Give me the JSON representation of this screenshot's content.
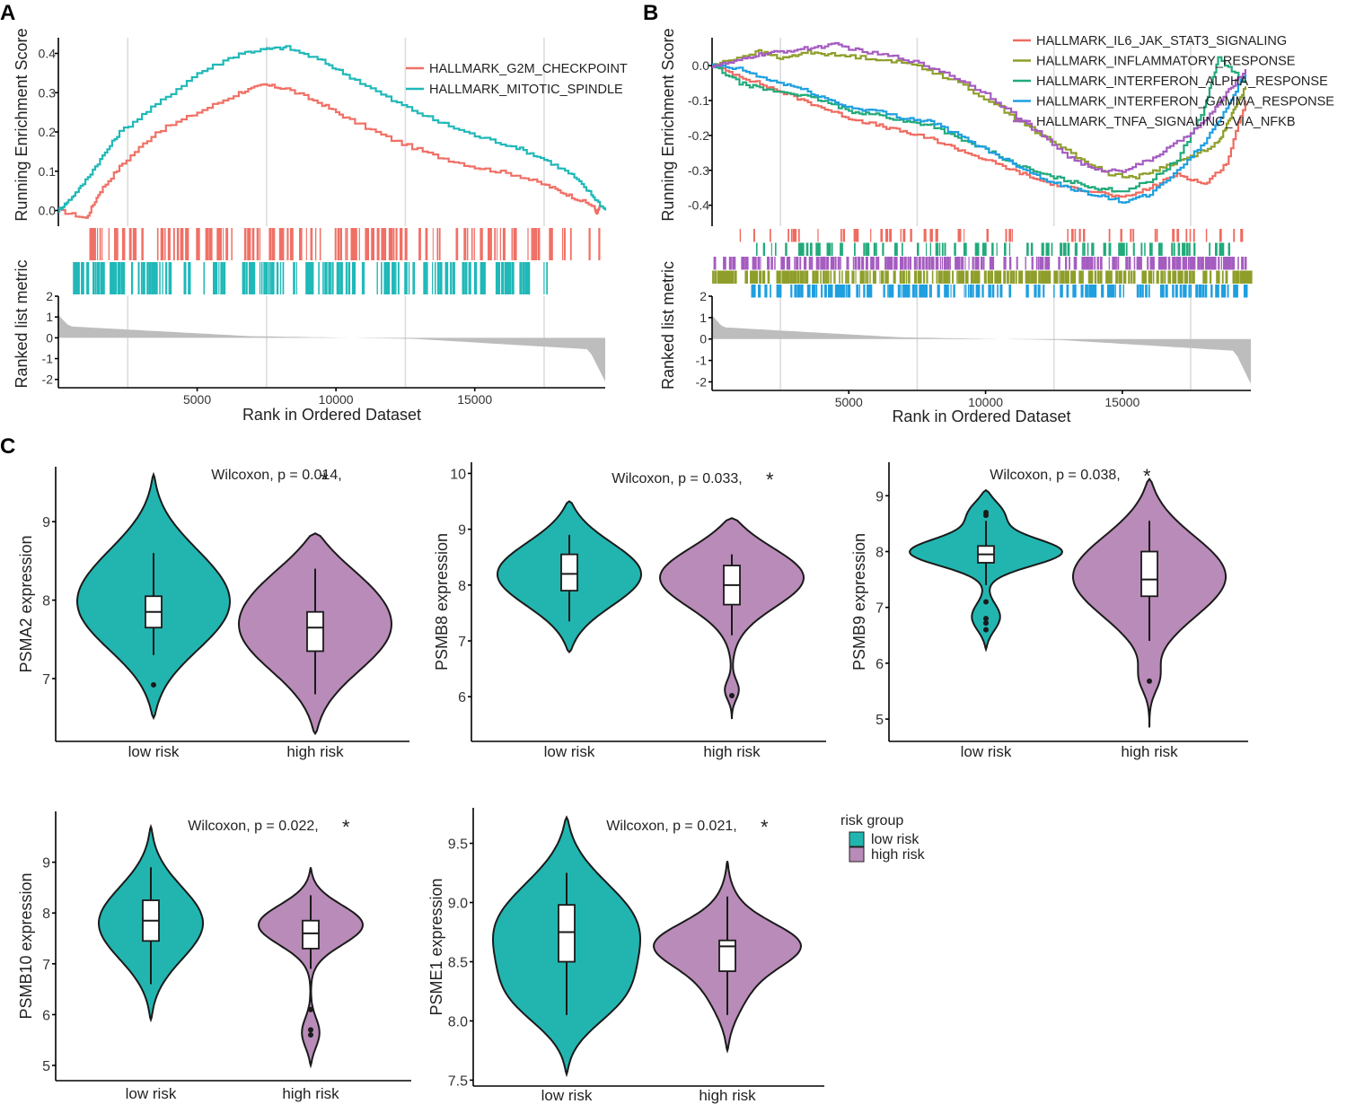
{
  "colors": {
    "low_risk": "#22b5b0",
    "high_risk": "#b98bb8",
    "gsea_a": [
      "#f07066",
      "#20b8b8"
    ],
    "gsea_b": [
      "#ef6b60",
      "#8f9e2a",
      "#22aa7a",
      "#1e9fe0",
      "#a55cc0"
    ],
    "metric_fill": "#bdbdbd"
  },
  "panel_labels": {
    "a": "A",
    "b": "B",
    "c": "C"
  },
  "chart_data": [
    {
      "type": "line",
      "id": "gsea_a",
      "panel": "A",
      "ylabel_top": "Running Enrichment Score",
      "ylabel_bottom": "Ranked list metric",
      "xlabel": "Rank in Ordered Dataset",
      "xlim": [
        0,
        19700
      ],
      "xticks": [
        5000,
        10000,
        15000
      ],
      "es_ylim": [
        -0.04,
        0.44
      ],
      "es_yticks": [
        0.0,
        0.1,
        0.2,
        0.3,
        0.4
      ],
      "es_yticklabels": [
        "0.0",
        "0.1",
        "0.2",
        "0.3",
        "0.4"
      ],
      "metric_ylim": [
        -2.4,
        2.0
      ],
      "metric_yticks": [
        -2,
        -1,
        0,
        1,
        2
      ],
      "grid_x": [
        2500,
        7500,
        12500,
        17500
      ],
      "series": [
        {
          "name": "HALLMARK_G2M_CHECKPOINT",
          "x": [
            0,
            1000,
            1500,
            2300,
            3500,
            5000,
            6500,
            7400,
            8200,
            9500,
            10500,
            12000,
            13500,
            15000,
            16500,
            17700,
            18500,
            19300,
            19400,
            19500
          ],
          "y": [
            0.0,
            -0.02,
            0.05,
            0.12,
            0.2,
            0.25,
            0.3,
            0.32,
            0.31,
            0.27,
            0.23,
            0.18,
            0.14,
            0.11,
            0.09,
            0.06,
            0.035,
            0.01,
            -0.01,
            0.01
          ],
          "hits": {
            "start": 900,
            "end": 18500,
            "n": 150,
            "extra": [
              19100,
              19450
            ]
          }
        },
        {
          "name": "HALLMARK_MITOTIC_SPINDLE",
          "x": [
            0,
            300,
            800,
            1500,
            2200,
            3500,
            5000,
            6500,
            7400,
            8200,
            9500,
            10500,
            12000,
            13500,
            15000,
            16500,
            17500,
            18500,
            19200,
            19700
          ],
          "y": [
            0.0,
            0.02,
            0.06,
            0.13,
            0.2,
            0.27,
            0.35,
            0.4,
            0.41,
            0.415,
            0.38,
            0.34,
            0.28,
            0.23,
            0.19,
            0.16,
            0.13,
            0.09,
            0.04,
            0.0
          ],
          "hits": {
            "start": 500,
            "end": 17700,
            "n": 190,
            "extra": []
          }
        }
      ]
    },
    {
      "type": "line",
      "id": "gsea_b",
      "panel": "B",
      "ylabel_top": "Running Enrichment Score",
      "ylabel_bottom": "Ranked list metric",
      "xlabel": "Rank in Ordered Dataset",
      "xlim": [
        0,
        19700
      ],
      "xticks": [
        5000,
        10000,
        15000
      ],
      "es_ylim": [
        -0.46,
        0.08
      ],
      "es_yticks": [
        0.0,
        -0.1,
        -0.2,
        -0.3,
        -0.4
      ],
      "es_yticklabels": [
        "0.0",
        "-0.1",
        "-0.2",
        "-0.3",
        "-0.4"
      ],
      "metric_ylim": [
        -2.4,
        2.0
      ],
      "metric_yticks": [
        -2,
        -1,
        0,
        1,
        2
      ],
      "grid_x": [
        2500,
        7500,
        12500,
        17500
      ],
      "series": [
        {
          "name": "HALLMARK_IL6_JAK_STAT3_SIGNALING",
          "x": [
            0,
            1000,
            2000,
            3000,
            4000,
            5000,
            6000,
            7000,
            8000,
            9000,
            10000,
            11000,
            12000,
            13000,
            14000,
            15000,
            16000,
            17000,
            18000,
            18800,
            19500
          ],
          "y": [
            0.0,
            -0.03,
            -0.06,
            -0.09,
            -0.12,
            -0.15,
            -0.17,
            -0.19,
            -0.21,
            -0.24,
            -0.27,
            -0.3,
            -0.33,
            -0.35,
            -0.36,
            -0.38,
            -0.35,
            -0.31,
            -0.34,
            -0.28,
            -0.1
          ],
          "hits": {
            "rows": [
              0
            ],
            "start": 400,
            "end": 19500,
            "n": 60
          }
        },
        {
          "name": "HALLMARK_INFLAMMATORY_RESPONSE",
          "x": [
            0,
            800,
            1700,
            2600,
            3500,
            4500,
            6000,
            7500,
            9000,
            10500,
            12000,
            13500,
            14500,
            15500,
            16500,
            17500,
            18500,
            19000,
            19500
          ],
          "y": [
            0.0,
            0.02,
            0.04,
            0.02,
            0.04,
            0.03,
            0.02,
            0.0,
            -0.05,
            -0.12,
            -0.2,
            -0.27,
            -0.31,
            -0.32,
            -0.29,
            -0.26,
            -0.22,
            -0.14,
            -0.06
          ],
          "hits": {
            "rows": [
              3
            ],
            "start": 0,
            "end": 19700,
            "n": 320
          }
        },
        {
          "name": "HALLMARK_INTERFERON_ALPHA_RESPONSE",
          "x": [
            0,
            1000,
            2000,
            3000,
            4000,
            5000,
            6000,
            7000,
            8000,
            9000,
            10000,
            11000,
            12000,
            13000,
            14000,
            15000,
            16000,
            17000,
            18000,
            18500,
            19500
          ],
          "y": [
            0.0,
            -0.05,
            -0.07,
            -0.08,
            -0.1,
            -0.13,
            -0.14,
            -0.16,
            -0.17,
            -0.21,
            -0.24,
            -0.28,
            -0.31,
            -0.33,
            -0.35,
            -0.36,
            -0.33,
            -0.27,
            -0.12,
            0.02,
            -0.05
          ],
          "hits": {
            "rows": [
              1
            ],
            "start": 1500,
            "end": 19000,
            "n": 110
          }
        },
        {
          "name": "HALLMARK_INTERFERON_GAMMA_RESPONSE",
          "x": [
            0,
            1000,
            2000,
            3000,
            4000,
            5000,
            6000,
            7000,
            8000,
            9000,
            10000,
            11000,
            12000,
            13000,
            14000,
            15000,
            16000,
            17000,
            18000,
            18800,
            19500
          ],
          "y": [
            0.0,
            -0.01,
            -0.04,
            -0.06,
            -0.09,
            -0.12,
            -0.13,
            -0.15,
            -0.16,
            -0.2,
            -0.24,
            -0.28,
            -0.32,
            -0.35,
            -0.37,
            -0.39,
            -0.37,
            -0.3,
            -0.22,
            -0.12,
            -0.02
          ],
          "hits": {
            "rows": [
              4
            ],
            "start": 1400,
            "end": 19500,
            "n": 180
          }
        },
        {
          "name": "HALLMARK_TNFA_SIGNALING_VIA_NFKB",
          "x": [
            0,
            800,
            1600,
            2500,
            3500,
            4500,
            5500,
            7000,
            8500,
            10000,
            11500,
            13000,
            14000,
            15000,
            16000,
            17000,
            18000,
            18800,
            19500
          ],
          "y": [
            0.0,
            0.01,
            0.03,
            0.04,
            0.05,
            0.06,
            0.04,
            0.02,
            -0.02,
            -0.08,
            -0.17,
            -0.26,
            -0.3,
            -0.3,
            -0.27,
            -0.22,
            -0.16,
            -0.08,
            -0.01
          ],
          "hits": {
            "rows": [
              2
            ],
            "start": 0,
            "end": 19500,
            "n": 260
          }
        }
      ]
    },
    {
      "type": "violin",
      "id": "psma2",
      "ylabel": "PSMA2 expression",
      "annotation": "Wilcoxon, p = 0.014,",
      "sig": "*",
      "ylim": [
        6.2,
        9.7
      ],
      "yticks": [
        7,
        8,
        9
      ],
      "yticklabels": [
        "7",
        "8",
        "9"
      ],
      "categories": [
        "low risk",
        "high risk"
      ],
      "groups": [
        {
          "name": "low risk",
          "min": 6.5,
          "max": 9.6,
          "peaks": [
            [
              7.8,
              1.0,
              0.55
            ],
            [
              8.5,
              0.45,
              0.5
            ]
          ],
          "whisker": [
            7.3,
            8.6
          ],
          "q1": 7.65,
          "median": 7.85,
          "q3": 8.05,
          "outliers": [
            6.92
          ]
        },
        {
          "name": "high risk",
          "min": 6.3,
          "max": 8.85,
          "peaks": [
            [
              7.6,
              0.95,
              0.55
            ],
            [
              8.3,
              0.3,
              0.4
            ]
          ],
          "whisker": [
            6.8,
            8.4
          ],
          "q1": 7.35,
          "median": 7.65,
          "q3": 7.85,
          "outliers": []
        }
      ]
    },
    {
      "type": "violin",
      "id": "psmb8",
      "ylabel": "PSMB8 expression",
      "annotation": "Wilcoxon, p = 0.033,",
      "sig": "*",
      "ylim": [
        5.2,
        10.2
      ],
      "yticks": [
        6,
        7,
        8,
        9,
        10
      ],
      "yticklabels": [
        "6",
        "7",
        "8",
        "9",
        "10"
      ],
      "categories": [
        "low risk",
        "high risk"
      ],
      "groups": [
        {
          "name": "low risk",
          "min": 6.8,
          "max": 9.5,
          "peaks": [
            [
              8.2,
              1.0,
              0.6
            ]
          ],
          "whisker": [
            7.35,
            8.9
          ],
          "q1": 7.9,
          "median": 8.2,
          "q3": 8.55,
          "outliers": []
        },
        {
          "name": "high risk",
          "min": 5.6,
          "max": 9.2,
          "peaks": [
            [
              8.2,
              1.0,
              0.55
            ],
            [
              6.1,
              0.12,
              0.18
            ]
          ],
          "whisker": [
            7.1,
            8.55
          ],
          "q1": 7.65,
          "median": 8.0,
          "q3": 8.35,
          "outliers": [
            6.02
          ]
        }
      ]
    },
    {
      "type": "violin",
      "id": "psmb9",
      "ylabel": "PSMB9 expression",
      "annotation": "Wilcoxon, p = 0.038,",
      "sig": "*",
      "ylim": [
        4.6,
        9.6
      ],
      "yticks": [
        5,
        6,
        7,
        8,
        9
      ],
      "yticklabels": [
        "5",
        "6",
        "7",
        "8",
        "9"
      ],
      "categories": [
        "low risk",
        "high risk"
      ],
      "groups": [
        {
          "name": "low risk",
          "min": 6.25,
          "max": 9.1,
          "peaks": [
            [
              8.0,
              1.0,
              0.25
            ],
            [
              6.8,
              0.22,
              0.25
            ],
            [
              8.7,
              0.3,
              0.25
            ]
          ],
          "whisker": [
            7.4,
            8.55
          ],
          "q1": 7.8,
          "median": 7.95,
          "q3": 8.1,
          "outliers": [
            6.6,
            6.72,
            6.8,
            7.1,
            8.65,
            8.7
          ]
        },
        {
          "name": "high risk",
          "min": 4.85,
          "max": 9.3,
          "peaks": [
            [
              7.6,
              0.8,
              0.75
            ],
            [
              5.7,
              0.1,
              0.25
            ]
          ],
          "whisker": [
            6.4,
            8.55
          ],
          "q1": 7.2,
          "median": 7.5,
          "q3": 8.0,
          "outliers": [
            5.68
          ]
        }
      ]
    },
    {
      "type": "violin",
      "id": "psmb10",
      "ylabel": "PSMB10 expression",
      "annotation": "Wilcoxon, p = 0.022,",
      "sig": "*",
      "ylim": [
        4.7,
        10.0
      ],
      "yticks": [
        5,
        6,
        7,
        8,
        9
      ],
      "yticklabels": [
        "5",
        "6",
        "7",
        "8",
        "9"
      ],
      "categories": [
        "low risk",
        "high risk"
      ],
      "groups": [
        {
          "name": "low risk",
          "min": 5.9,
          "max": 9.7,
          "peaks": [
            [
              7.8,
              1.0,
              0.75
            ]
          ],
          "whisker": [
            6.6,
            8.9
          ],
          "q1": 7.45,
          "median": 7.85,
          "q3": 8.25,
          "outliers": []
        },
        {
          "name": "high risk",
          "min": 5.0,
          "max": 8.9,
          "peaks": [
            [
              7.8,
              1.0,
              0.4
            ],
            [
              5.6,
              0.2,
              0.3
            ]
          ],
          "whisker": [
            6.9,
            8.35
          ],
          "q1": 7.3,
          "median": 7.6,
          "q3": 7.85,
          "outliers": [
            5.6,
            5.7,
            6.1
          ]
        }
      ]
    },
    {
      "type": "violin",
      "id": "psme1",
      "ylabel": "PSME1 expression",
      "annotation": "Wilcoxon, p = 0.021,",
      "sig": "*",
      "ylim": [
        7.45,
        9.8
      ],
      "yticks": [
        7.5,
        8.0,
        8.5,
        9.0,
        9.5
      ],
      "yticklabels": [
        "7.5",
        "8.0",
        "8.5",
        "9.0",
        "9.5"
      ],
      "categories": [
        "low risk",
        "high risk"
      ],
      "groups": [
        {
          "name": "low risk",
          "min": 7.55,
          "max": 9.72,
          "peaks": [
            [
              8.9,
              0.95,
              0.35
            ],
            [
              8.15,
              0.65,
              0.25
            ],
            [
              8.5,
              0.45,
              0.3
            ]
          ],
          "whisker": [
            8.05,
            9.25
          ],
          "q1": 8.5,
          "median": 8.75,
          "q3": 8.98,
          "outliers": []
        },
        {
          "name": "high risk",
          "min": 7.75,
          "max": 9.35,
          "peaks": [
            [
              8.65,
              1.0,
              0.18
            ],
            [
              8.3,
              0.35,
              0.25
            ],
            [
              8.95,
              0.15,
              0.2
            ]
          ],
          "whisker": [
            8.05,
            9.05
          ],
          "q1": 8.42,
          "median": 8.63,
          "q3": 8.68,
          "outliers": []
        }
      ]
    }
  ],
  "legend": {
    "title": "risk group",
    "items": [
      "low risk",
      "high risk"
    ]
  }
}
